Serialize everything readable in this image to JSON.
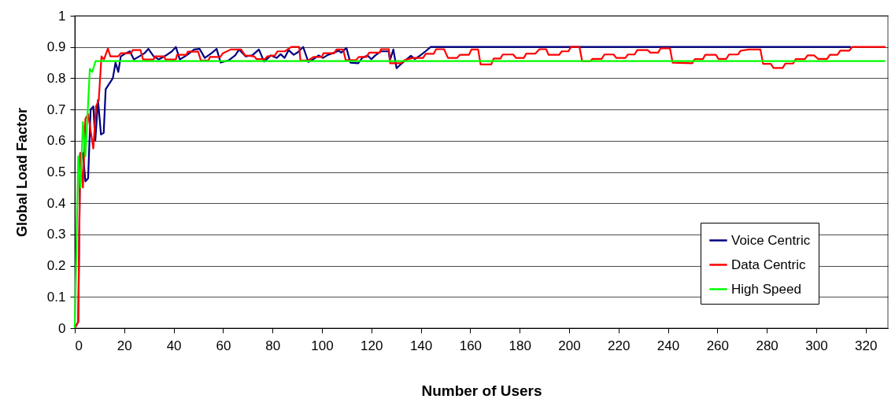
{
  "chart_data": {
    "type": "line",
    "xlabel": "Number of Users",
    "ylabel": "Global Load Factor",
    "xlim": [
      0,
      329
    ],
    "xticks": [
      0,
      20,
      40,
      60,
      80,
      100,
      120,
      140,
      160,
      180,
      200,
      220,
      240,
      260,
      280,
      300,
      320
    ],
    "ylim": [
      0,
      1
    ],
    "yticks": [
      0,
      0.1,
      0.2,
      0.3,
      0.4,
      0.5,
      0.6,
      0.7,
      0.8,
      0.9,
      1
    ],
    "grid": "y",
    "legend": "bottom right",
    "marker": "none",
    "line_style": "solid",
    "series": [
      {
        "name": "Voice Centric",
        "color": "#000080",
        "x": [
          0,
          1.4,
          2.2,
          3.3,
          4.3,
          5.4,
          6.4,
          7.5,
          8.3,
          9.4,
          10.6,
          11.7,
          12.5,
          15.4,
          16.5,
          17.6,
          18.6,
          20.7,
          22.3,
          23.9,
          26.1,
          28.2,
          29.8,
          31.9,
          34,
          36.7,
          39.3,
          40.9,
          42.5,
          45.2,
          48.3,
          50.5,
          52.6,
          55.3,
          57.4,
          59,
          62.2,
          64.9,
          66.5,
          69.1,
          71.8,
          74.5,
          76.6,
          79.3,
          81.7,
          83.3,
          84.9,
          86.5,
          88.6,
          90.2,
          92.4,
          94.5,
          96.6,
          98.7,
          100.4,
          102.5,
          105.1,
          106.7,
          107.8,
          109.9,
          111.5,
          114.7,
          116.3,
          118.4,
          120,
          121.6,
          123.8,
          127,
          127.5,
          128.9,
          130.2,
          131.8,
          133.9,
          136,
          137.6,
          139.8,
          141.9,
          144,
          314
        ],
        "values": [
          0,
          0.02,
          0.56,
          0.56,
          0.47,
          0.48,
          0.7,
          0.71,
          0.6,
          0.73,
          0.62,
          0.625,
          0.765,
          0.8,
          0.85,
          0.82,
          0.87,
          0.88,
          0.886,
          0.86,
          0.87,
          0.88,
          0.894,
          0.87,
          0.86,
          0.872,
          0.886,
          0.9,
          0.86,
          0.873,
          0.892,
          0.894,
          0.865,
          0.88,
          0.894,
          0.85,
          0.857,
          0.873,
          0.892,
          0.87,
          0.873,
          0.892,
          0.853,
          0.873,
          0.865,
          0.877,
          0.865,
          0.89,
          0.875,
          0.883,
          0.9,
          0.852,
          0.861,
          0.873,
          0.865,
          0.875,
          0.882,
          0.888,
          0.882,
          0.897,
          0.85,
          0.848,
          0.865,
          0.873,
          0.861,
          0.873,
          0.886,
          0.886,
          0.857,
          0.892,
          0.832,
          0.844,
          0.858,
          0.872,
          0.861,
          0.873,
          0.886,
          0.9,
          0.9
        ]
      },
      {
        "name": "Data Centric",
        "color": "#ff0000",
        "x": [
          0,
          1.4,
          2.2,
          3.3,
          4.3,
          5.4,
          7.5,
          8.6,
          9.7,
          10.8,
          11.8,
          13.4,
          14.4,
          17.6,
          18.6,
          22.9,
          23.4,
          26.6,
          27.6,
          31.9,
          32.4,
          36.1,
          36.7,
          40.9,
          41.4,
          45.2,
          45.7,
          49.9,
          51,
          54.1,
          54.7,
          58.9,
          59.9,
          63.1,
          67.3,
          68.9,
          72.6,
          73.6,
          76.9,
          77.9,
          81,
          82,
          85,
          87.6,
          90.8,
          91.3,
          94.5,
          96.6,
          100,
          100.6,
          104.9,
          105.9,
          108.6,
          109.6,
          113.8,
          114.9,
          118,
          119.1,
          123.4,
          123.9,
          127.1,
          127.6,
          131.9,
          133.5,
          136.7,
          140.9,
          142,
          145.2,
          146.2,
          149.4,
          151,
          154.7,
          155.8,
          159.5,
          160.5,
          163.2,
          164.2,
          168.5,
          169.5,
          172.2,
          173.2,
          177.4,
          178.5,
          181.7,
          182.7,
          186.4,
          188,
          190.7,
          191.7,
          196,
          197,
          199.7,
          200.8,
          204.2,
          205.3,
          208.5,
          209.5,
          213.2,
          214.3,
          218,
          219.1,
          222.8,
          223.8,
          226.5,
          227.6,
          231.8,
          232.9,
          236,
          237.1,
          240.8,
          241.9,
          249.8,
          250.9,
          254.1,
          255.1,
          259.4,
          260.4,
          263.6,
          264.7,
          268.4,
          269.4,
          272.6,
          277.4,
          278.5,
          281.6,
          282.7,
          286.4,
          287.5,
          290.6,
          291.7,
          295.4,
          296.5,
          299.1,
          300.7,
          304.4,
          305.5,
          308.6,
          309.7,
          313.4,
          314.5,
          328
        ],
        "values": [
          0,
          0.02,
          0.56,
          0.45,
          0.67,
          0.685,
          0.575,
          0.71,
          0.73,
          0.87,
          0.86,
          0.895,
          0.87,
          0.87,
          0.88,
          0.88,
          0.89,
          0.89,
          0.86,
          0.86,
          0.87,
          0.87,
          0.86,
          0.86,
          0.875,
          0.875,
          0.885,
          0.885,
          0.857,
          0.857,
          0.868,
          0.868,
          0.88,
          0.892,
          0.892,
          0.873,
          0.87,
          0.861,
          0.861,
          0.87,
          0.873,
          0.886,
          0.886,
          0.9,
          0.9,
          0.857,
          0.857,
          0.868,
          0.868,
          0.88,
          0.88,
          0.892,
          0.892,
          0.858,
          0.858,
          0.868,
          0.868,
          0.882,
          0.882,
          0.893,
          0.893,
          0.848,
          0.848,
          0.858,
          0.865,
          0.865,
          0.878,
          0.878,
          0.893,
          0.893,
          0.865,
          0.865,
          0.875,
          0.875,
          0.892,
          0.892,
          0.844,
          0.844,
          0.863,
          0.863,
          0.876,
          0.876,
          0.865,
          0.865,
          0.879,
          0.879,
          0.893,
          0.893,
          0.875,
          0.875,
          0.886,
          0.886,
          0.9,
          0.9,
          0.854,
          0.854,
          0.862,
          0.862,
          0.876,
          0.876,
          0.865,
          0.865,
          0.876,
          0.876,
          0.89,
          0.89,
          0.882,
          0.882,
          0.896,
          0.896,
          0.85,
          0.848,
          0.861,
          0.861,
          0.875,
          0.875,
          0.862,
          0.862,
          0.876,
          0.876,
          0.888,
          0.892,
          0.892,
          0.846,
          0.846,
          0.833,
          0.833,
          0.847,
          0.847,
          0.861,
          0.861,
          0.873,
          0.873,
          0.862,
          0.862,
          0.875,
          0.875,
          0.888,
          0.888,
          0.9,
          0.9
        ]
      },
      {
        "name": "High Speed",
        "color": "#00ff00",
        "x": [
          0,
          1.4,
          2.3,
          3.3,
          4.3,
          6.1,
          7.1,
          8.4,
          328
        ],
        "values": [
          0,
          0.55,
          0.45,
          0.66,
          0.55,
          0.83,
          0.82,
          0.855,
          0.855
        ]
      }
    ]
  }
}
